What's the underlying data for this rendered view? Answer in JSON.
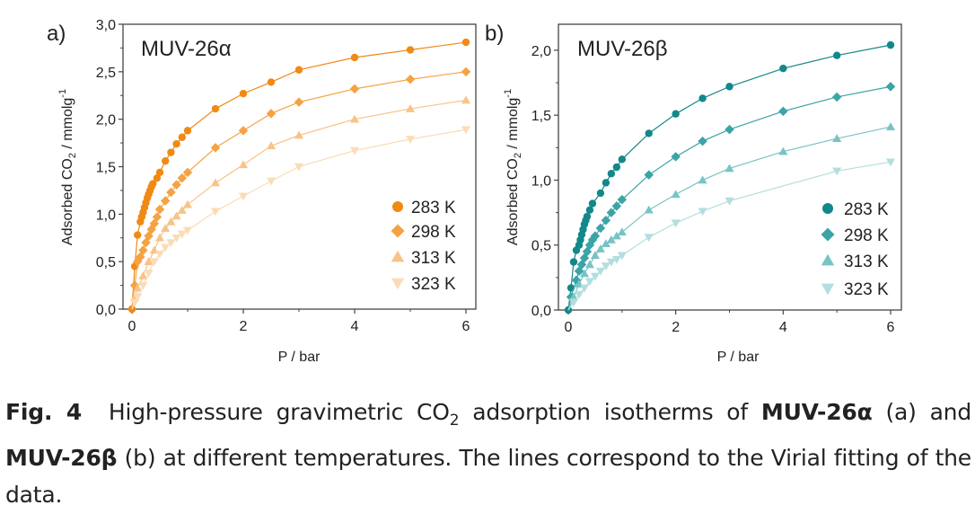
{
  "chart_data": [
    {
      "type": "scatter",
      "panel_label": "a)",
      "title": "MUV-26α",
      "xlabel": "P / bar",
      "ylabel": {
        "main": "Adsorbed CO",
        "sub": "2",
        "unit": " / mmolg",
        "sup": "-1"
      },
      "xlim": [
        -0.2,
        6.2
      ],
      "ylim": [
        0,
        3.0
      ],
      "xticks": [
        0,
        2,
        4,
        6
      ],
      "xtick_labels": [
        "0",
        "2",
        "4",
        "6"
      ],
      "yticks": [
        0,
        0.5,
        1.0,
        1.5,
        2.0,
        2.5,
        3.0
      ],
      "ytick_labels": [
        "0,0",
        "0,5",
        "1,0",
        "1,5",
        "2,0",
        "2,5",
        "3,0"
      ],
      "grid": false,
      "legend_position": "bottom-right",
      "series": [
        {
          "name": "283 K",
          "marker": "circle",
          "color": "#f08a14",
          "points": [
            [
              0,
              0
            ],
            [
              0.05,
              0.45
            ],
            [
              0.1,
              0.78
            ],
            [
              0.15,
              0.92
            ],
            [
              0.175,
              0.97
            ],
            [
              0.2,
              1.02
            ],
            [
              0.225,
              1.07
            ],
            [
              0.25,
              1.12
            ],
            [
              0.275,
              1.17
            ],
            [
              0.3,
              1.21
            ],
            [
              0.325,
              1.25
            ],
            [
              0.35,
              1.29
            ],
            [
              0.375,
              1.32
            ],
            [
              0.45,
              1.38
            ],
            [
              0.5,
              1.44
            ],
            [
              0.6,
              1.56
            ],
            [
              0.7,
              1.65
            ],
            [
              0.8,
              1.74
            ],
            [
              0.9,
              1.81
            ],
            [
              1.0,
              1.88
            ],
            [
              1.5,
              2.11
            ],
            [
              2,
              2.27
            ],
            [
              2.5,
              2.39
            ],
            [
              3,
              2.52
            ],
            [
              4,
              2.65
            ],
            [
              5,
              2.73
            ],
            [
              6,
              2.81
            ]
          ]
        },
        {
          "name": "298 K",
          "marker": "diamond",
          "color": "#f5a243",
          "points": [
            [
              0.05,
              0.25
            ],
            [
              0.1,
              0.5
            ],
            [
              0.15,
              0.55
            ],
            [
              0.2,
              0.62
            ],
            [
              0.25,
              0.7
            ],
            [
              0.3,
              0.77
            ],
            [
              0.35,
              0.84
            ],
            [
              0.4,
              0.9
            ],
            [
              0.45,
              0.97
            ],
            [
              0.5,
              1.05
            ],
            [
              0.6,
              1.14
            ],
            [
              0.7,
              1.23
            ],
            [
              0.8,
              1.31
            ],
            [
              0.9,
              1.38
            ],
            [
              1.0,
              1.44
            ],
            [
              1.5,
              1.7
            ],
            [
              2,
              1.88
            ],
            [
              2.5,
              2.06
            ],
            [
              3,
              2.18
            ],
            [
              4,
              2.32
            ],
            [
              5,
              2.42
            ],
            [
              6,
              2.5
            ]
          ]
        },
        {
          "name": "313 K",
          "marker": "triangle-up",
          "color": "#f8c388",
          "points": [
            [
              0.05,
              0.12
            ],
            [
              0.1,
              0.22
            ],
            [
              0.2,
              0.35
            ],
            [
              0.3,
              0.5
            ],
            [
              0.4,
              0.62
            ],
            [
              0.5,
              0.75
            ],
            [
              0.6,
              0.85
            ],
            [
              0.7,
              0.92
            ],
            [
              0.8,
              0.98
            ],
            [
              0.9,
              1.04
            ],
            [
              1,
              1.1
            ],
            [
              1.5,
              1.33
            ],
            [
              2,
              1.52
            ],
            [
              2.5,
              1.72
            ],
            [
              3,
              1.83
            ],
            [
              4,
              2.0
            ],
            [
              5,
              2.11
            ],
            [
              6,
              2.2
            ]
          ]
        },
        {
          "name": "323 K",
          "marker": "triangle-down",
          "color": "#fbdcb6",
          "points": [
            [
              0.05,
              0.07
            ],
            [
              0.1,
              0.13
            ],
            [
              0.2,
              0.25
            ],
            [
              0.3,
              0.38
            ],
            [
              0.4,
              0.5
            ],
            [
              0.5,
              0.58
            ],
            [
              0.6,
              0.65
            ],
            [
              0.7,
              0.7
            ],
            [
              0.8,
              0.75
            ],
            [
              0.9,
              0.79
            ],
            [
              1,
              0.83
            ],
            [
              1.5,
              1.03
            ],
            [
              2,
              1.19
            ],
            [
              2.5,
              1.35
            ],
            [
              3,
              1.5
            ],
            [
              4,
              1.67
            ],
            [
              5,
              1.79
            ],
            [
              6,
              1.89
            ]
          ]
        }
      ]
    },
    {
      "type": "scatter",
      "panel_label": "b)",
      "title": "MUV-26β",
      "xlabel": "P / bar",
      "ylabel": {
        "main": "Adsorbed CO",
        "sub": "2",
        "unit": " / mmolg",
        "sup": "-1"
      },
      "xlim": [
        -0.2,
        6.2
      ],
      "ylim": [
        0,
        2.2
      ],
      "xticks": [
        0,
        2,
        4,
        6
      ],
      "xtick_labels": [
        "0",
        "2",
        "4",
        "6"
      ],
      "yticks": [
        0,
        0.5,
        1.0,
        1.5,
        2.0
      ],
      "ytick_labels": [
        "0,0",
        "0,5",
        "1,0",
        "1,5",
        "2,0"
      ],
      "grid": false,
      "legend_position": "bottom-right",
      "series": [
        {
          "name": "283 K",
          "marker": "circle",
          "color": "#12888a",
          "points": [
            [
              0,
              0
            ],
            [
              0.05,
              0.17
            ],
            [
              0.1,
              0.37
            ],
            [
              0.15,
              0.46
            ],
            [
              0.2,
              0.5
            ],
            [
              0.225,
              0.54
            ],
            [
              0.25,
              0.58
            ],
            [
              0.275,
              0.62
            ],
            [
              0.3,
              0.66
            ],
            [
              0.325,
              0.69
            ],
            [
              0.35,
              0.72
            ],
            [
              0.4,
              0.77
            ],
            [
              0.45,
              0.82
            ],
            [
              0.6,
              0.9
            ],
            [
              0.7,
              0.98
            ],
            [
              0.8,
              1.05
            ],
            [
              0.9,
              1.1
            ],
            [
              1,
              1.16
            ],
            [
              1.5,
              1.36
            ],
            [
              2,
              1.51
            ],
            [
              2.5,
              1.63
            ],
            [
              3,
              1.72
            ],
            [
              4,
              1.86
            ],
            [
              5,
              1.96
            ],
            [
              6,
              2.04
            ]
          ]
        },
        {
          "name": "298 K",
          "marker": "diamond",
          "color": "#3ba4a6",
          "points": [
            [
              0.05,
              0.1
            ],
            [
              0.15,
              0.23
            ],
            [
              0.2,
              0.3
            ],
            [
              0.25,
              0.35
            ],
            [
              0.3,
              0.4
            ],
            [
              0.35,
              0.45
            ],
            [
              0.4,
              0.5
            ],
            [
              0.45,
              0.54
            ],
            [
              0.5,
              0.57
            ],
            [
              0.6,
              0.63
            ],
            [
              0.7,
              0.69
            ],
            [
              0.8,
              0.75
            ],
            [
              0.9,
              0.8
            ],
            [
              1,
              0.85
            ],
            [
              1.5,
              1.04
            ],
            [
              2,
              1.18
            ],
            [
              2.5,
              1.3
            ],
            [
              3,
              1.39
            ],
            [
              4,
              1.53
            ],
            [
              5,
              1.64
            ],
            [
              6,
              1.72
            ]
          ]
        },
        {
          "name": "313 K",
          "marker": "triangle-up",
          "color": "#79c3c5",
          "points": [
            [
              0.1,
              0.1
            ],
            [
              0.2,
              0.2
            ],
            [
              0.3,
              0.28
            ],
            [
              0.4,
              0.35
            ],
            [
              0.5,
              0.42
            ],
            [
              0.6,
              0.47
            ],
            [
              0.7,
              0.51
            ],
            [
              0.8,
              0.54
            ],
            [
              0.9,
              0.57
            ],
            [
              1,
              0.6
            ],
            [
              1.5,
              0.77
            ],
            [
              2,
              0.89
            ],
            [
              2.5,
              1.0
            ],
            [
              3,
              1.09
            ],
            [
              4,
              1.22
            ],
            [
              5,
              1.32
            ],
            [
              6,
              1.41
            ]
          ]
        },
        {
          "name": "323 K",
          "marker": "triangle-down",
          "color": "#b3dedf",
          "points": [
            [
              0.1,
              0.06
            ],
            [
              0.2,
              0.12
            ],
            [
              0.3,
              0.17
            ],
            [
              0.4,
              0.22
            ],
            [
              0.5,
              0.26
            ],
            [
              0.6,
              0.3
            ],
            [
              0.7,
              0.34
            ],
            [
              0.8,
              0.37
            ],
            [
              0.9,
              0.39
            ],
            [
              1,
              0.42
            ],
            [
              1.5,
              0.56
            ],
            [
              2,
              0.67
            ],
            [
              2.5,
              0.76
            ],
            [
              3,
              0.84
            ],
            [
              5,
              1.07
            ],
            [
              6,
              1.14
            ]
          ]
        }
      ]
    }
  ],
  "caption": {
    "fig_label": "Fig. 4",
    "text1": "  High-pressure gravimetric CO",
    "sub": "2",
    "text2": " adsorption isotherms of ",
    "name_a": "MUV-26α",
    "text3": " (a) and ",
    "name_b": "MUV-26β",
    "text4": " (b) at different temperatures. The lines correspond to the Virial fitting of the data."
  }
}
